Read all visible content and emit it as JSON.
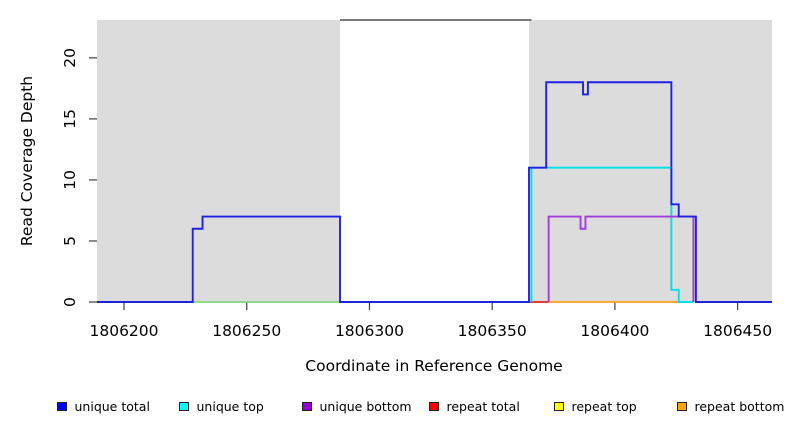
{
  "chart_data": {
    "type": "line",
    "subtype": "step-coverage",
    "title": "",
    "xlabel": "Coordinate in Reference Genome",
    "ylabel": "Read Coverage Depth",
    "xlim": [
      1806189,
      1806464
    ],
    "ylim": [
      0,
      23.1
    ],
    "xticks": [
      1806200,
      1806250,
      1806300,
      1806350,
      1806400,
      1806450
    ],
    "yticks": [
      0,
      5,
      10,
      15,
      20
    ],
    "grid": false,
    "legend_position": "bottom",
    "background_shading": {
      "color": "#DCDCDC",
      "regions": [
        [
          1806189,
          1806288
        ],
        [
          1806365,
          1806464
        ]
      ]
    },
    "box_top_segment": {
      "x": [
        1806288,
        1806366
      ],
      "color": "#4d4d4d"
    },
    "series": [
      {
        "name": "unique top",
        "color": "#00E0E8",
        "points": [
          [
            1806366,
            0
          ],
          [
            1806366,
            11
          ],
          [
            1806423,
            11
          ],
          [
            1806423,
            1
          ],
          [
            1806426,
            1
          ],
          [
            1806426,
            0
          ],
          [
            1806432,
            0
          ]
        ]
      },
      {
        "name": "unique bottom",
        "color": "#A23BDB",
        "points": [
          [
            1806373,
            0
          ],
          [
            1806373,
            7
          ],
          [
            1806386,
            7
          ],
          [
            1806386,
            6
          ],
          [
            1806388,
            6
          ],
          [
            1806388,
            7
          ],
          [
            1806432,
            7
          ],
          [
            1806432,
            0
          ]
        ]
      },
      {
        "name": "unique total",
        "color": "#2121E0",
        "points": [
          [
            1806189,
            0
          ],
          [
            1806228,
            0
          ],
          [
            1806228,
            6
          ],
          [
            1806232,
            6
          ],
          [
            1806232,
            7
          ],
          [
            1806288,
            7
          ],
          [
            1806288,
            0
          ],
          [
            1806365,
            0
          ],
          [
            1806365,
            11
          ],
          [
            1806372,
            11
          ],
          [
            1806372,
            18
          ],
          [
            1806387,
            18
          ],
          [
            1806387,
            17
          ],
          [
            1806389,
            17
          ],
          [
            1806389,
            18
          ],
          [
            1806423,
            18
          ],
          [
            1806423,
            8
          ],
          [
            1806426,
            8
          ],
          [
            1806426,
            7
          ],
          [
            1806433,
            7
          ],
          [
            1806433,
            0
          ],
          [
            1806464,
            0
          ]
        ]
      }
    ],
    "zero_line_segments": [
      {
        "series": "unique top + repeat top overlap",
        "color": "#7FD87F",
        "x": [
          1806228,
          1806288
        ]
      },
      {
        "series": "repeat total",
        "color": "#DD2222",
        "x": [
          1806365,
          1806373
        ]
      },
      {
        "series": "repeat bottom",
        "color": "#FF9E1B",
        "x": [
          1806373,
          1806426
        ]
      },
      {
        "series": "unique top + repeat top overlap",
        "color": "#7FD87F",
        "x": [
          1806426,
          1806432
        ]
      }
    ]
  },
  "legend": {
    "items": [
      {
        "label": "unique total",
        "color": "#0000FF"
      },
      {
        "label": "unique top",
        "color": "#00FFFF"
      },
      {
        "label": "unique bottom",
        "color": "#9400D3"
      },
      {
        "label": "repeat total",
        "color": "#FF0000"
      },
      {
        "label": "repeat top",
        "color": "#FFFF00"
      },
      {
        "label": "repeat bottom",
        "color": "#FFA500"
      }
    ]
  }
}
